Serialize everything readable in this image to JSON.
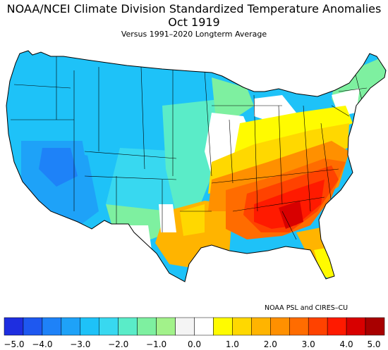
{
  "header": {
    "title": "NOAA/NCEI Climate Division Standardized Temperature Anomalies",
    "period": "Oct 1919",
    "baseline": "Versus 1991–2020 Longterm Average"
  },
  "credit": "NOAA PSL and CIRES–CU",
  "legend": {
    "colors": [
      "#1e2ee0",
      "#1e58f0",
      "#1e82f8",
      "#1ea2f8",
      "#1ec2f8",
      "#38d8f0",
      "#5aecc8",
      "#7ef0a0",
      "#a2f28a",
      "#f4f4f4",
      "#ffffff",
      "#fffb00",
      "#ffd800",
      "#ffb400",
      "#ff9000",
      "#ff6c00",
      "#ff4200",
      "#ff1a00",
      "#d80000",
      "#a80000"
    ],
    "ticks": [
      "−5.0",
      "−4.0",
      "−3.0",
      "−2.0",
      "−1.0",
      "0.0",
      "1.0",
      "2.0",
      "3.0",
      "4.0",
      "5.0"
    ]
  },
  "map": {
    "colors": {
      "deep_blue": "#1e82f8",
      "blue": "#1ea2f8",
      "cyan": "#1ec2f8",
      "aqua": "#38d8f0",
      "teal_green": "#5aecc8",
      "light_green": "#7ef0a0",
      "white": "#ffffff",
      "yellow": "#fffb00",
      "gold": "#ffd800",
      "orange": "#ffb400",
      "dark_orange": "#ff9000",
      "red_orange": "#ff6c00",
      "red": "#ff4200",
      "bright_red": "#ff1a00",
      "dark_red": "#d80000",
      "division_lines": "#000000"
    }
  }
}
